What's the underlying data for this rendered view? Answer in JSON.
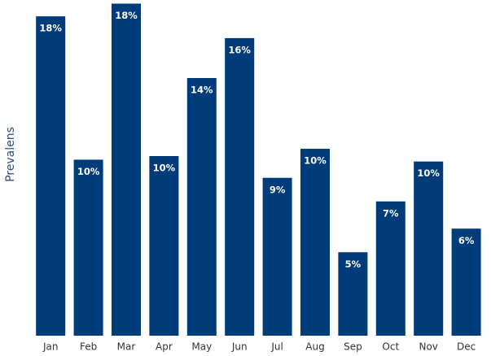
{
  "chart_data": {
    "type": "bar",
    "y_label": "Prevalens",
    "categories": [
      "Jan",
      "Feb",
      "Mar",
      "Apr",
      "May",
      "Jun",
      "Jul",
      "Aug",
      "Sep",
      "Oct",
      "Nov",
      "Dec"
    ],
    "values": [
      17.6,
      9.7,
      18.3,
      9.9,
      14.2,
      16.4,
      8.7,
      10.3,
      4.6,
      7.4,
      9.6,
      5.9
    ],
    "value_labels": [
      "18%",
      "10%",
      "18%",
      "10%",
      "14%",
      "16%",
      "9%",
      "10%",
      "5%",
      "7%",
      "10%",
      "6%"
    ],
    "color": "#003b7a",
    "ylim": [
      0,
      18.5
    ]
  }
}
